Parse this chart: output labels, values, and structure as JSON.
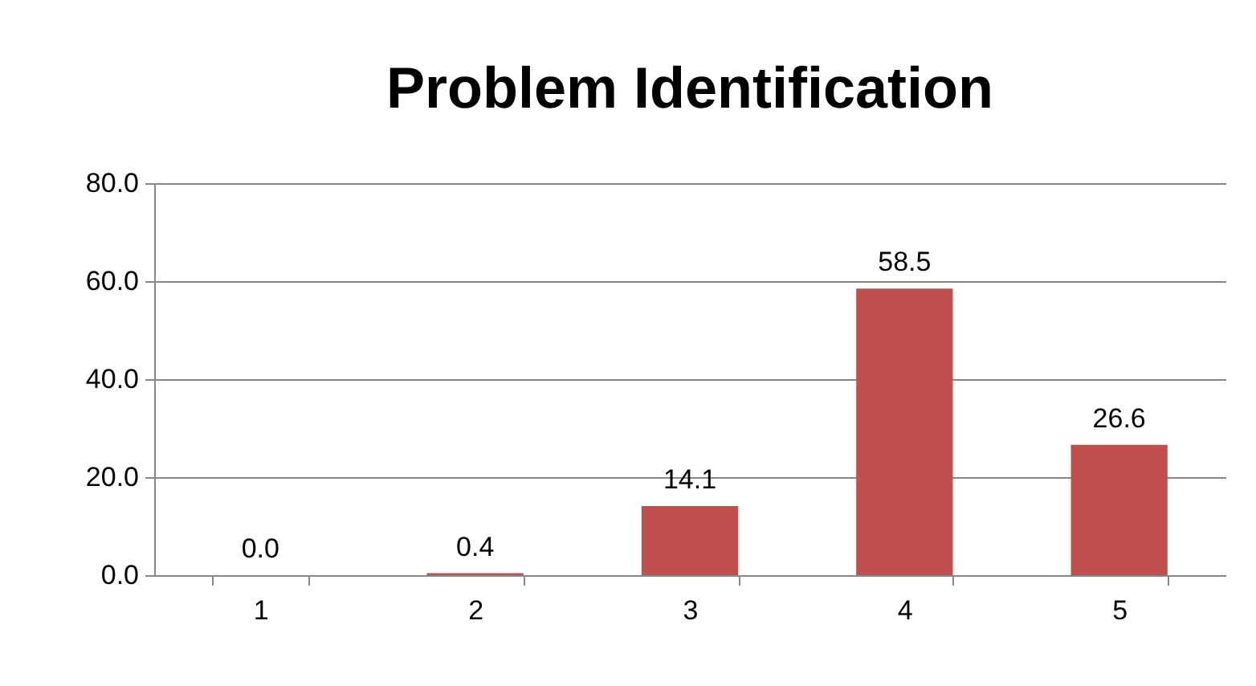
{
  "chart_data": {
    "type": "bar",
    "title": "Problem Identification",
    "categories": [
      "1",
      "2",
      "3",
      "4",
      "5"
    ],
    "values": [
      0,
      0.4,
      14.1,
      58.5,
      26.6
    ],
    "value_labels": [
      "0.0",
      "0.4",
      "14.1",
      "58.5",
      "26.6"
    ],
    "color": "#c0504d",
    "ylim": [
      0,
      80
    ],
    "yticks": [
      {
        "value": 0,
        "label": "0.0"
      },
      {
        "value": 20,
        "label": "20.0"
      },
      {
        "value": 40,
        "label": "40.0"
      },
      {
        "value": 60,
        "label": "60.0"
      },
      {
        "value": 80,
        "label": "80.0"
      }
    ],
    "grid": "y"
  }
}
